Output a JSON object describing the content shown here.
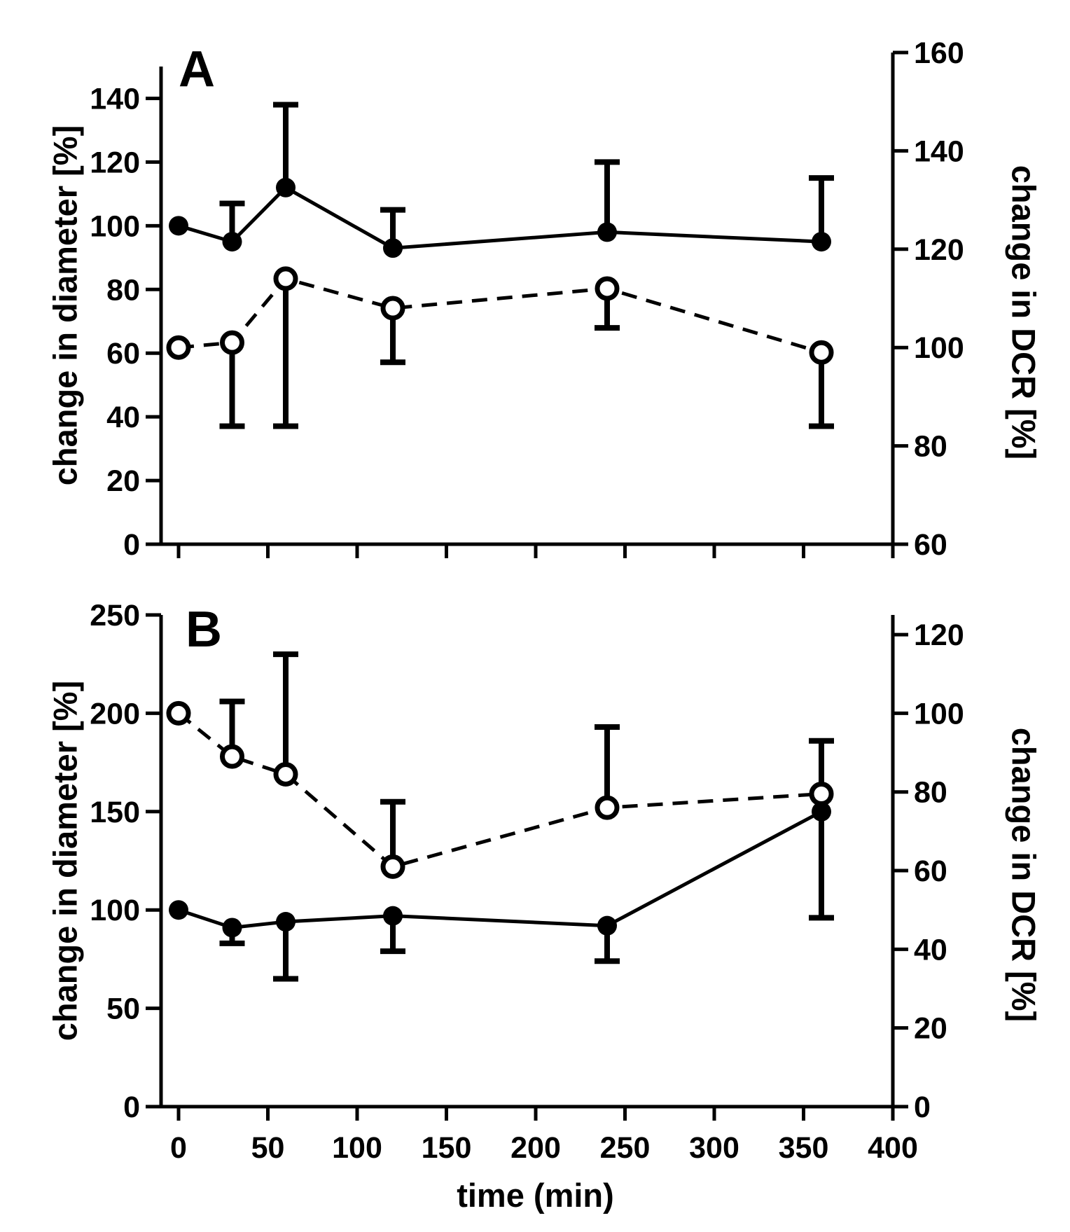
{
  "chart_data": [
    {
      "panel_label": "A",
      "type": "line",
      "x": [
        0,
        30,
        60,
        120,
        240,
        360
      ],
      "xlabel": "time (min)",
      "xlim": [
        0,
        400
      ],
      "ylabel_left": "change in diameter [%]",
      "ylim_left": [
        0,
        150
      ],
      "yticks_left": [
        "0",
        "20",
        "40",
        "60",
        "80",
        "100",
        "120",
        "140"
      ],
      "ylabel_right": "change in DCR [%]",
      "ylim_right": [
        60,
        160
      ],
      "yticks_right": [
        "60",
        "80",
        "100",
        "120",
        "140",
        "160"
      ],
      "series": [
        {
          "name": "diameter",
          "axis": "left",
          "style": "solid",
          "marker": "filled-circle",
          "values": [
            100,
            95,
            112,
            93,
            98,
            95
          ],
          "error_upper": [
            100,
            107,
            138,
            105,
            120,
            115
          ]
        },
        {
          "name": "DCR",
          "axis": "right",
          "style": "dashed",
          "marker": "open-circle",
          "values": [
            100,
            101,
            114,
            108,
            112,
            99
          ],
          "error_lower": [
            100,
            84,
            84,
            97,
            104,
            84
          ]
        }
      ]
    },
    {
      "panel_label": "B",
      "type": "line",
      "x": [
        0,
        30,
        60,
        120,
        240,
        360
      ],
      "xlabel": "time (min)",
      "xlim": [
        0,
        400
      ],
      "xticks": [
        "0",
        "50",
        "100",
        "150",
        "200",
        "250",
        "300",
        "350",
        "400"
      ],
      "ylabel_left": "change in diameter [%]",
      "ylim_left": [
        0,
        250
      ],
      "yticks_left": [
        "0",
        "50",
        "100",
        "150",
        "200",
        "250"
      ],
      "ylabel_right": "change in DCR [%]",
      "ylim_right": [
        0,
        125
      ],
      "yticks_right": [
        "0",
        "20",
        "40",
        "60",
        "80",
        "100",
        "120"
      ],
      "series": [
        {
          "name": "diameter",
          "axis": "left",
          "style": "solid",
          "marker": "filled-circle",
          "values": [
            100,
            91,
            94,
            97,
            92,
            150
          ],
          "error_lower": [
            100,
            83,
            65,
            79,
            74,
            96
          ]
        },
        {
          "name": "DCR",
          "axis": "right",
          "style": "dashed",
          "marker": "open-circle",
          "values": [
            100,
            89,
            84.5,
            61,
            76,
            79.5
          ],
          "error_upper": [
            100,
            103,
            115,
            77.5,
            96.5,
            93
          ]
        }
      ]
    }
  ]
}
